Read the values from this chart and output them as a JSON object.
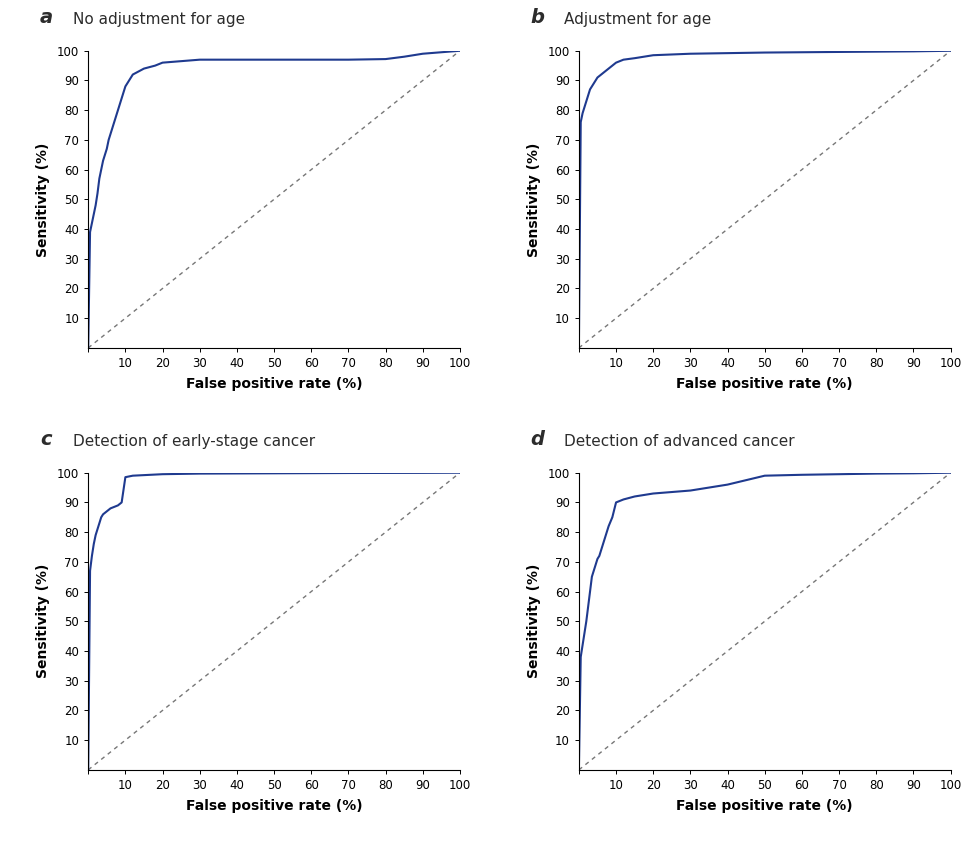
{
  "panels": [
    {
      "label": "a",
      "title": "No adjustment for age",
      "roc_x": [
        0,
        0.5,
        1,
        1.5,
        2,
        2.5,
        3,
        3.5,
        4,
        4.5,
        5,
        5.5,
        6,
        6.5,
        7,
        7.5,
        8,
        9,
        10,
        12,
        15,
        18,
        20,
        25,
        30,
        40,
        50,
        60,
        70,
        80,
        85,
        90,
        95,
        100
      ],
      "roc_y": [
        0,
        39,
        42,
        45,
        48,
        52,
        57,
        60,
        63,
        65,
        67,
        70,
        72,
        74,
        76,
        78,
        80,
        84,
        88,
        92,
        94,
        95,
        96,
        96.5,
        97,
        97,
        97,
        97,
        97,
        97.2,
        98,
        99,
        99.5,
        100
      ]
    },
    {
      "label": "b",
      "title": "Adjustment for age",
      "roc_x": [
        0,
        0.5,
        1,
        1.5,
        2,
        2.5,
        3,
        3.5,
        4,
        4.5,
        5,
        6,
        7,
        8,
        9,
        10,
        12,
        15,
        20,
        30,
        40,
        50,
        60,
        70,
        80,
        90,
        100
      ],
      "roc_y": [
        0,
        76,
        79,
        81,
        83,
        85,
        87,
        88,
        89,
        90,
        91,
        92,
        93,
        94,
        95,
        96,
        97,
        97.5,
        98.5,
        99,
        99.2,
        99.4,
        99.5,
        99.6,
        99.7,
        99.8,
        100
      ]
    },
    {
      "label": "c",
      "title": "Detection of early-stage cancer",
      "roc_x": [
        0,
        0.5,
        1,
        1.5,
        2,
        2.5,
        3,
        3.5,
        4,
        5,
        6,
        7,
        8,
        9,
        10,
        12,
        20,
        30,
        50,
        70,
        90,
        100
      ],
      "roc_y": [
        0,
        67,
        72,
        76,
        79,
        81,
        83,
        85,
        86,
        87,
        88,
        88.5,
        89,
        90,
        98.5,
        99,
        99.5,
        99.7,
        99.8,
        99.9,
        99.95,
        100
      ]
    },
    {
      "label": "d",
      "title": "Detection of advanced cancer",
      "roc_x": [
        0,
        0.5,
        1,
        1.5,
        2,
        2.5,
        3,
        3.5,
        4,
        4.5,
        5,
        5.5,
        6,
        6.5,
        7,
        8,
        9,
        10,
        12,
        15,
        20,
        25,
        30,
        40,
        50,
        60,
        70,
        80,
        90,
        100
      ],
      "roc_y": [
        0,
        38,
        42,
        46,
        50,
        55,
        60,
        65,
        67,
        69,
        71,
        72,
        74,
        76,
        78,
        82,
        85,
        90,
        91,
        92,
        93,
        93.5,
        94,
        96,
        99,
        99.3,
        99.5,
        99.7,
        99.8,
        100
      ]
    }
  ],
  "curve_color": "#1f3a8f",
  "diag_color": "#777777",
  "xlabel": "False positive rate (%)",
  "ylabel": "Sensitivity (%)",
  "xlim": [
    0,
    100
  ],
  "ylim": [
    0,
    100
  ],
  "xticks": [
    0,
    10,
    20,
    30,
    40,
    50,
    60,
    70,
    80,
    90,
    100
  ],
  "yticks": [
    10,
    20,
    30,
    40,
    50,
    60,
    70,
    80,
    90,
    100
  ],
  "xlabel_fontsize": 10,
  "ylabel_fontsize": 10,
  "panel_label_fontsize": 14,
  "title_fontsize": 11,
  "tick_fontsize": 8.5,
  "background_color": "#ffffff",
  "grid": false
}
